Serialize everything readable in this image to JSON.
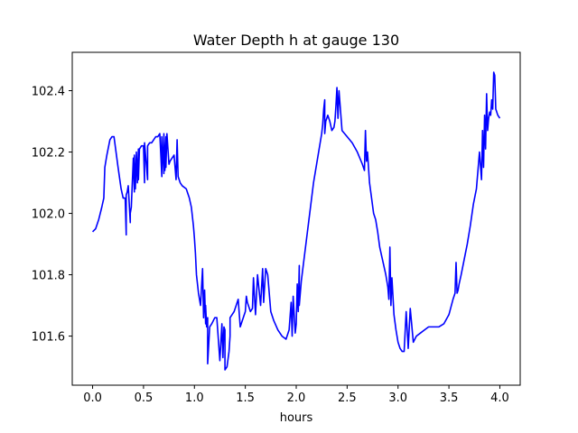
{
  "chart_data": {
    "type": "line",
    "title": "Water Depth h at gauge 130",
    "xlabel": "hours",
    "ylabel": "",
    "xlim": [
      -0.2,
      4.2
    ],
    "ylim": [
      101.44,
      102.525
    ],
    "grid": false,
    "legend": "none",
    "x_ticks": [
      0.0,
      0.5,
      1.0,
      1.5,
      2.0,
      2.5,
      3.0,
      3.5,
      4.0
    ],
    "x_tick_labels": [
      "0.0",
      "0.5",
      "1.0",
      "1.5",
      "2.0",
      "2.5",
      "3.0",
      "3.5",
      "4.0"
    ],
    "y_ticks": [
      101.6,
      101.8,
      102.0,
      102.2,
      102.4
    ],
    "y_tick_labels": [
      "101.6",
      "101.8",
      "102.0",
      "102.2",
      "102.4"
    ],
    "series": [
      {
        "color": "#0000ff",
        "x": [
          0.0,
          0.03,
          0.06,
          0.09,
          0.11,
          0.12,
          0.14,
          0.17,
          0.19,
          0.21,
          0.23,
          0.25,
          0.28,
          0.3,
          0.32,
          0.33,
          0.33,
          0.34,
          0.35,
          0.37,
          0.37,
          0.38,
          0.4,
          0.41,
          0.41,
          0.42,
          0.43,
          0.44,
          0.45,
          0.45,
          0.46,
          0.48,
          0.5,
          0.51,
          0.51,
          0.54,
          0.54,
          0.56,
          0.58,
          0.6,
          0.62,
          0.64,
          0.66,
          0.68,
          0.68,
          0.7,
          0.7,
          0.71,
          0.72,
          0.72,
          0.73,
          0.75,
          0.76,
          0.78,
          0.8,
          0.82,
          0.83,
          0.84,
          0.86,
          0.88,
          0.92,
          0.95,
          0.97,
          0.98,
          0.99,
          1.0,
          1.01,
          1.02,
          1.04,
          1.06,
          1.08,
          1.09,
          1.1,
          1.11,
          1.11,
          1.12,
          1.13,
          1.13,
          1.15,
          1.17,
          1.2,
          1.22,
          1.25,
          1.27,
          1.28,
          1.29,
          1.3,
          1.3,
          1.32,
          1.34,
          1.35,
          1.35,
          1.37,
          1.39,
          1.41,
          1.43,
          1.45,
          1.48,
          1.5,
          1.51,
          1.52,
          1.55,
          1.57,
          1.58,
          1.6,
          1.62,
          1.65,
          1.67,
          1.68,
          1.7,
          1.72,
          1.75,
          1.78,
          1.82,
          1.86,
          1.9,
          1.93,
          1.95,
          1.96,
          1.97,
          1.99,
          2.0,
          2.01,
          2.02,
          2.03,
          2.03,
          2.05,
          2.08,
          2.11,
          2.14,
          2.17,
          2.2,
          2.23,
          2.25,
          2.26,
          2.27,
          2.28,
          2.28,
          2.29,
          2.31,
          2.33,
          2.35,
          2.37,
          2.38,
          2.39,
          2.4,
          2.41,
          2.42,
          2.45,
          2.5,
          2.55,
          2.6,
          2.65,
          2.67,
          2.68,
          2.69,
          2.7,
          2.72,
          2.74,
          2.76,
          2.78,
          2.8,
          2.82,
          2.84,
          2.86,
          2.88,
          2.9,
          2.91,
          2.92,
          2.93,
          2.94,
          2.96,
          2.98,
          3.0,
          3.02,
          3.04,
          3.06,
          3.08,
          3.1,
          3.12,
          3.15,
          3.18,
          3.22,
          3.26,
          3.3,
          3.35,
          3.4,
          3.45,
          3.5,
          3.54,
          3.56,
          3.57,
          3.58,
          3.59,
          3.6,
          3.62,
          3.65,
          3.68,
          3.71,
          3.74,
          3.77,
          3.8,
          3.82,
          3.83,
          3.84,
          3.85,
          3.86,
          3.87,
          3.88,
          3.89,
          3.9,
          3.91,
          3.92,
          3.93,
          3.94,
          3.95,
          3.96,
          3.98,
          4.0
        ],
        "y": [
          101.94,
          101.95,
          101.98,
          102.02,
          102.05,
          102.15,
          102.19,
          102.24,
          102.25,
          102.25,
          102.2,
          102.15,
          102.08,
          102.05,
          102.05,
          101.93,
          102.06,
          102.07,
          102.09,
          101.97,
          102.0,
          102.02,
          102.18,
          102.07,
          102.19,
          102.08,
          102.2,
          102.1,
          102.21,
          102.11,
          102.21,
          102.22,
          102.22,
          102.1,
          102.23,
          102.11,
          102.22,
          102.23,
          102.23,
          102.24,
          102.25,
          102.25,
          102.26,
          102.12,
          102.25,
          102.13,
          102.26,
          102.14,
          102.25,
          102.15,
          102.26,
          102.16,
          102.17,
          102.18,
          102.19,
          102.11,
          102.24,
          102.12,
          102.1,
          102.09,
          102.08,
          102.05,
          102.02,
          101.99,
          101.96,
          101.92,
          101.87,
          101.8,
          101.74,
          101.7,
          101.82,
          101.66,
          101.75,
          101.64,
          101.7,
          101.63,
          101.66,
          101.51,
          101.63,
          101.64,
          101.66,
          101.66,
          101.52,
          101.64,
          101.53,
          101.63,
          101.62,
          101.49,
          101.5,
          101.55,
          101.6,
          101.66,
          101.67,
          101.68,
          101.7,
          101.72,
          101.63,
          101.66,
          101.68,
          101.73,
          101.71,
          101.68,
          101.69,
          101.79,
          101.67,
          101.8,
          101.7,
          101.82,
          101.71,
          101.82,
          101.8,
          101.68,
          101.65,
          101.62,
          101.6,
          101.59,
          101.62,
          101.71,
          101.6,
          101.73,
          101.61,
          101.64,
          101.77,
          101.68,
          101.83,
          101.7,
          101.78,
          101.86,
          101.94,
          102.02,
          102.1,
          102.16,
          102.22,
          102.26,
          102.29,
          102.34,
          102.37,
          102.26,
          102.3,
          102.32,
          102.3,
          102.27,
          102.28,
          102.3,
          102.35,
          102.41,
          102.31,
          102.4,
          102.27,
          102.25,
          102.23,
          102.2,
          102.16,
          102.14,
          102.27,
          102.17,
          102.2,
          102.1,
          102.05,
          102.0,
          101.98,
          101.94,
          101.89,
          101.86,
          101.83,
          101.8,
          101.76,
          101.72,
          101.89,
          101.7,
          101.79,
          101.67,
          101.62,
          101.58,
          101.56,
          101.55,
          101.55,
          101.68,
          101.56,
          101.69,
          101.58,
          101.6,
          101.61,
          101.62,
          101.63,
          101.63,
          101.63,
          101.64,
          101.67,
          101.72,
          101.74,
          101.84,
          101.74,
          101.75,
          101.77,
          101.8,
          101.85,
          101.9,
          101.96,
          102.03,
          102.08,
          102.2,
          102.11,
          102.27,
          102.15,
          102.32,
          102.21,
          102.39,
          102.27,
          102.31,
          102.33,
          102.32,
          102.37,
          102.34,
          102.46,
          102.45,
          102.34,
          102.32,
          102.31
        ]
      }
    ]
  }
}
